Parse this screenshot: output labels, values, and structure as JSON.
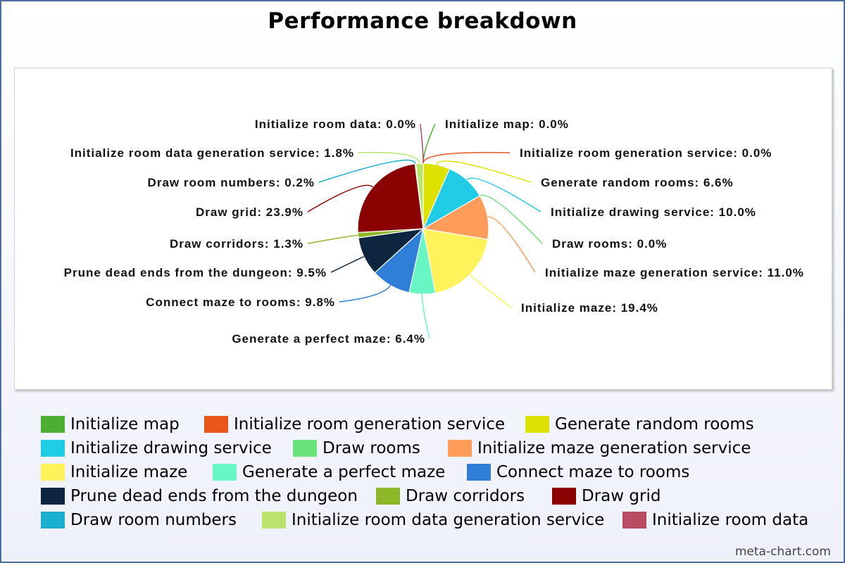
{
  "chart_data": {
    "type": "pie",
    "title": "Performance breakdown",
    "slices": [
      {
        "name": "Initialize map",
        "value": 0.0,
        "label": "Initialize map: 0.0%",
        "color": "#4cae34"
      },
      {
        "name": "Initialize room generation service",
        "value": 0.0,
        "label": "Initialize room generation service: 0.0%",
        "color": "#e9561a"
      },
      {
        "name": "Generate random rooms",
        "value": 6.6,
        "label": "Generate random rooms: 6.6%",
        "color": "#dde200"
      },
      {
        "name": "Initialize drawing service",
        "value": 10.0,
        "label": "Initialize drawing service: 10.0%",
        "color": "#21cde6"
      },
      {
        "name": "Draw rooms",
        "value": 0.0,
        "label": "Draw rooms: 0.0%",
        "color": "#6ae27a"
      },
      {
        "name": "Initialize maze generation service",
        "value": 11.0,
        "label": "Initialize maze generation service: 11.0%",
        "color": "#ff9c5a"
      },
      {
        "name": "Initialize maze",
        "value": 19.4,
        "label": "Initialize maze: 19.4%",
        "color": "#fff25a"
      },
      {
        "name": "Generate a perfect maze",
        "value": 6.4,
        "label": "Generate a perfect maze: 6.4%",
        "color": "#68f7c4"
      },
      {
        "name": "Connect maze to rooms",
        "value": 9.8,
        "label": "Connect maze to rooms: 9.8%",
        "color": "#2f7fd9"
      },
      {
        "name": "Prune dead ends from the dungeon",
        "value": 9.5,
        "label": "Prune dead ends from the dungeon: 9.5%",
        "color": "#0e2540"
      },
      {
        "name": "Draw corridors",
        "value": 1.3,
        "label": "Draw corridors: 1.3%",
        "color": "#8db82a"
      },
      {
        "name": "Draw grid",
        "value": 23.9,
        "label": "Draw grid: 23.9%",
        "color": "#8b0000"
      },
      {
        "name": "Draw room numbers",
        "value": 0.2,
        "label": "Draw room numbers: 0.2%",
        "color": "#1aaecf"
      },
      {
        "name": "Initialize room data generation service",
        "value": 1.8,
        "label": "Initialize room data generation service: 1.8%",
        "color": "#b9e36a"
      },
      {
        "name": "Initialize room data",
        "value": 0.0,
        "label": "Initialize room data: 0.0%",
        "color": "#b94b63"
      }
    ],
    "legend_position": "bottom"
  },
  "legend": {
    "rows": [
      [
        "Initialize map",
        "Initialize room generation service",
        "Generate random rooms"
      ],
      [
        "Initialize drawing service",
        "Draw rooms",
        "Initialize maze generation service"
      ],
      [
        "Initialize maze",
        "Generate a perfect maze",
        "Connect maze to rooms"
      ],
      [
        "Prune dead ends from the dungeon",
        "Draw corridors",
        "Draw grid"
      ],
      [
        "Draw room numbers",
        "Initialize room data generation service",
        "Initialize room data"
      ]
    ]
  },
  "watermark": "meta-chart.com"
}
